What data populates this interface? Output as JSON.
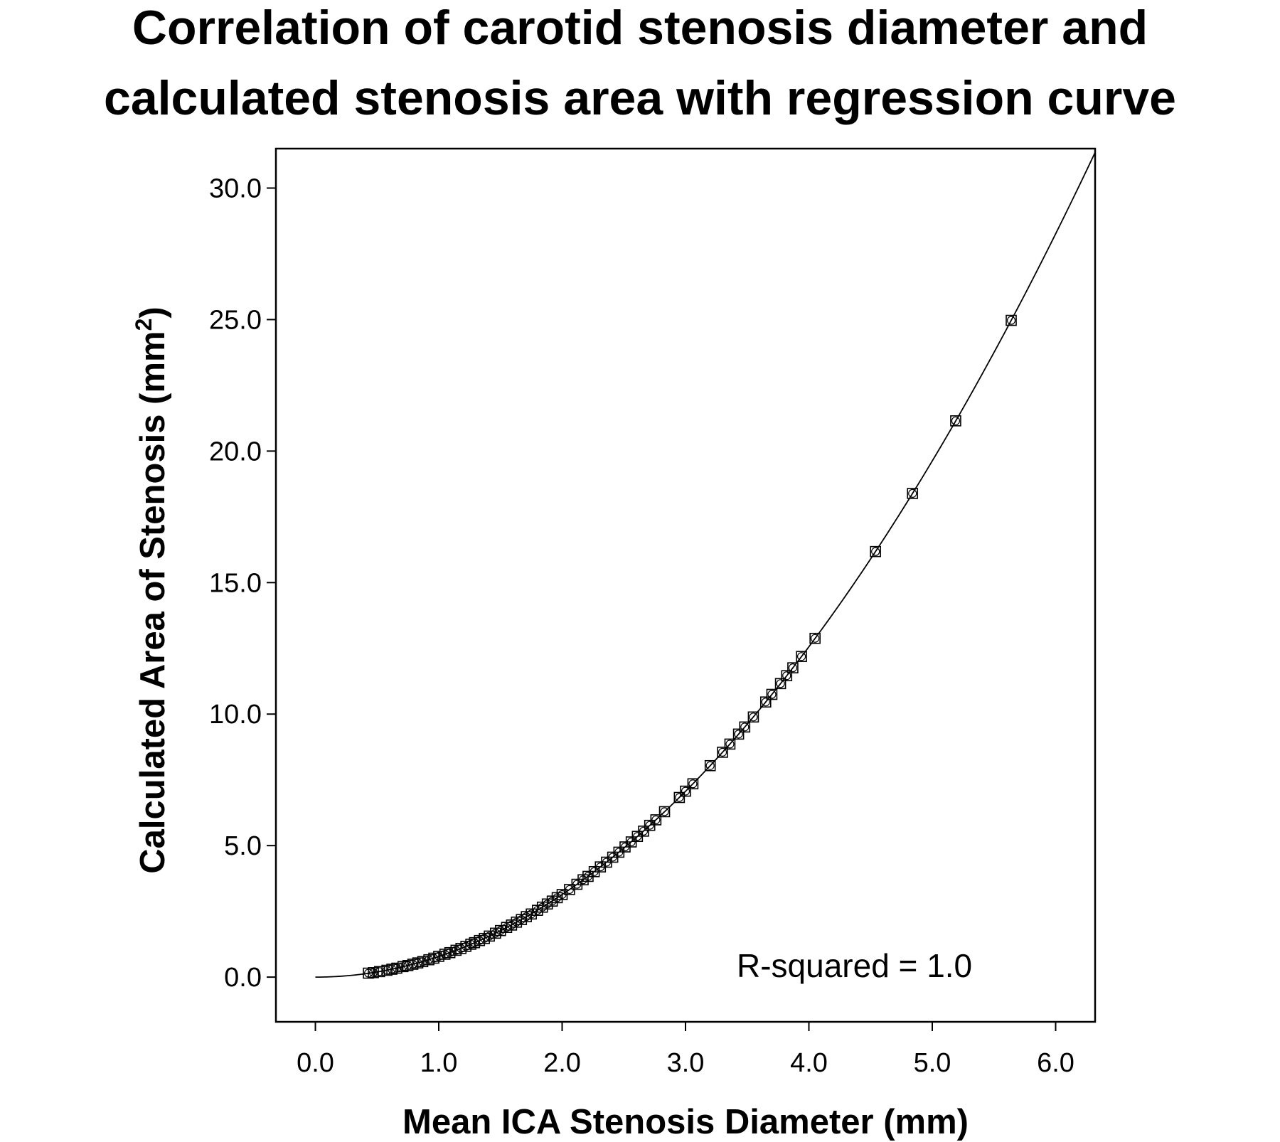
{
  "chart_data": {
    "type": "scatter",
    "title_line1": "Correlation of carotid stenosis diameter and",
    "title_line2": "calculated stenosis area with regression curve",
    "xlabel": "Mean ICA Stenosis Diameter (mm)",
    "ylabel": "Calculated Area of Stenosis (mm",
    "ylabel_sup": "2",
    "ylabel_close": ")",
    "annotation": "R-squared = 1.0",
    "xlim": [
      -0.32,
      6.32
    ],
    "ylim": [
      -1.7,
      31.5
    ],
    "x_ticks": [
      0.0,
      1.0,
      2.0,
      3.0,
      4.0,
      5.0,
      6.0
    ],
    "x_tick_labels": [
      "0.0",
      "1.0",
      "2.0",
      "3.0",
      "4.0",
      "5.0",
      "6.0"
    ],
    "y_ticks": [
      0.0,
      5.0,
      10.0,
      15.0,
      20.0,
      25.0,
      30.0
    ],
    "y_tick_labels": [
      "0.0",
      "5.0",
      "10.0",
      "15.0",
      "20.0",
      "25.0",
      "30.0"
    ],
    "grid": false,
    "regression": {
      "type": "quadratic",
      "coefficient": 0.785,
      "x_range": [
        0.0,
        6.32
      ]
    },
    "x": [
      0.43,
      0.47,
      0.52,
      0.58,
      0.62,
      0.66,
      0.71,
      0.75,
      0.79,
      0.83,
      0.87,
      0.92,
      0.96,
      1.0,
      1.05,
      1.09,
      1.14,
      1.18,
      1.22,
      1.26,
      1.29,
      1.33,
      1.37,
      1.41,
      1.46,
      1.5,
      1.55,
      1.59,
      1.63,
      1.67,
      1.71,
      1.75,
      1.8,
      1.84,
      1.88,
      1.92,
      1.96,
      2.0,
      2.06,
      2.12,
      2.17,
      2.21,
      2.26,
      2.31,
      2.36,
      2.41,
      2.46,
      2.51,
      2.56,
      2.61,
      2.66,
      2.71,
      2.76,
      2.83,
      2.95,
      3.0,
      3.06,
      3.2,
      3.3,
      3.36,
      3.43,
      3.48,
      3.55,
      3.65,
      3.7,
      3.77,
      3.82,
      3.87,
      3.94,
      4.05,
      4.54,
      4.84,
      5.19,
      5.64
    ],
    "y": [
      0.15,
      0.17,
      0.21,
      0.26,
      0.3,
      0.34,
      0.4,
      0.44,
      0.49,
      0.54,
      0.59,
      0.66,
      0.72,
      0.79,
      0.87,
      0.93,
      1.02,
      1.09,
      1.17,
      1.25,
      1.31,
      1.39,
      1.47,
      1.56,
      1.67,
      1.77,
      1.89,
      1.98,
      2.09,
      2.19,
      2.3,
      2.4,
      2.54,
      2.66,
      2.78,
      2.89,
      3.02,
      3.14,
      3.33,
      3.53,
      3.7,
      3.83,
      4.01,
      4.19,
      4.37,
      4.56,
      4.75,
      4.95,
      5.14,
      5.35,
      5.55,
      5.77,
      5.98,
      6.29,
      6.83,
      7.07,
      7.35,
      8.04,
      8.55,
      8.86,
      9.24,
      9.51,
      9.89,
      10.46,
      10.75,
      11.16,
      11.46,
      11.76,
      12.19,
      12.88,
      16.18,
      18.39,
      21.15,
      24.97
    ]
  }
}
